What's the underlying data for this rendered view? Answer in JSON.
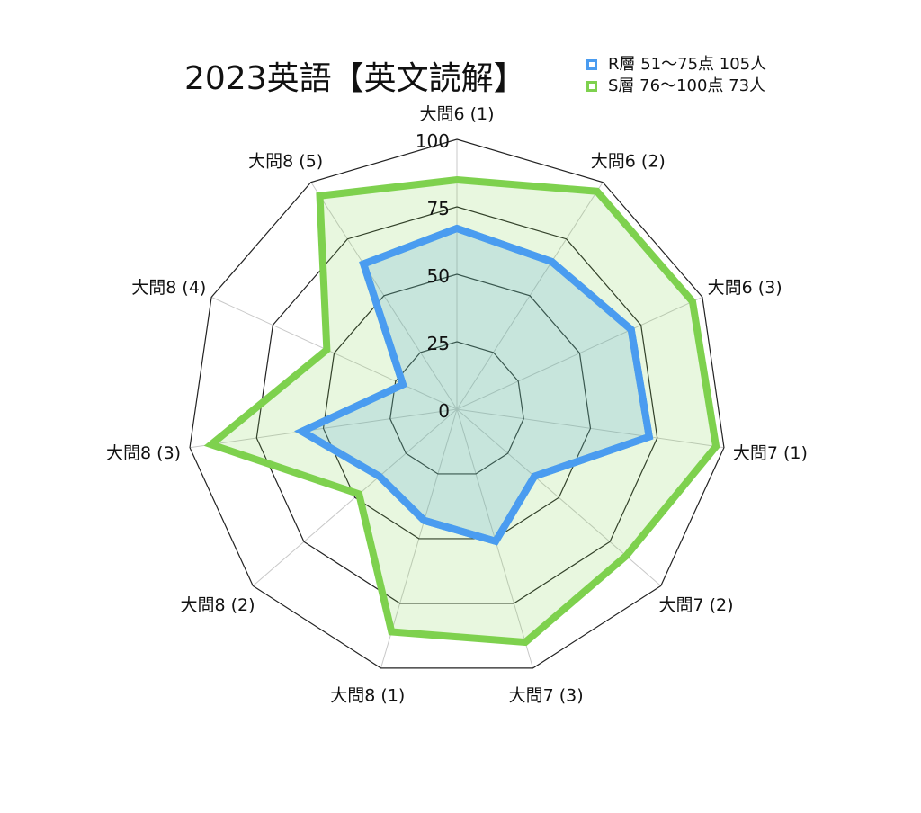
{
  "chart_data": {
    "type": "radar",
    "title": "2023英語【英文読解】",
    "categories": [
      "大問6 (1)",
      "大問6 (2)",
      "大問6 (3)",
      "大問7 (1)",
      "大問7 (2)",
      "大問7 (3)",
      "大問8 (1)",
      "大問8 (2)",
      "大問8 (3)",
      "大問8 (4)",
      "大問8 (5)"
    ],
    "r_ticks": [
      "0",
      "25",
      "50",
      "75",
      "100"
    ],
    "r_range": [
      0,
      100
    ],
    "series": [
      {
        "name": "R層 51～75点 105人",
        "color": "#4a9cf0",
        "fill": "rgba(74,156,240,0.22)",
        "values": [
          67,
          65,
          71,
          72,
          38,
          51,
          43,
          38,
          58,
          22,
          64
        ]
      },
      {
        "name": "S層 76～100点 73人",
        "color": "#7ed14e",
        "fill": "rgba(126,209,78,0.18)",
        "values": [
          85,
          96,
          96,
          97,
          83,
          90,
          86,
          48,
          92,
          53,
          94
        ]
      }
    ],
    "legend_position": "top-right",
    "grid": true
  }
}
